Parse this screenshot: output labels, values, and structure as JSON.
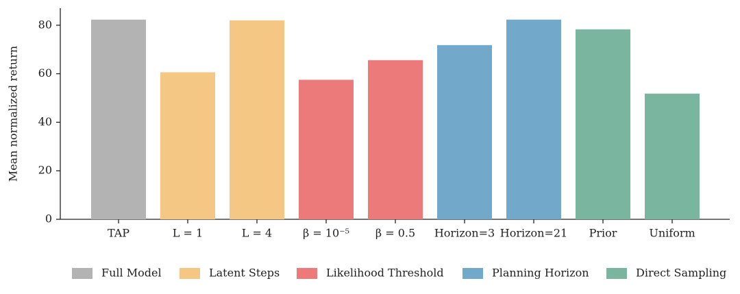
{
  "chart_data": {
    "type": "bar",
    "ylabel": "Mean normalized return",
    "categories": [
      "TAP",
      "L = 1",
      "L = 4",
      "β = 10⁻⁵",
      "β = 0.5",
      "Horizon=3",
      "Horizon=21",
      "Prior",
      "Uniform"
    ],
    "series": [
      {
        "name": "Full Model",
        "color": "#b3b3b3",
        "values": [
          82.3,
          null,
          null,
          null,
          null,
          null,
          null,
          null,
          null
        ]
      },
      {
        "name": "Latent Steps",
        "color": "#f4c784",
        "values": [
          null,
          60.6,
          82.0,
          null,
          null,
          null,
          null,
          null,
          null
        ]
      },
      {
        "name": "Likelihood Threshold",
        "color": "#ec7a7b",
        "values": [
          null,
          null,
          null,
          57.5,
          65.6,
          null,
          null,
          null,
          null
        ]
      },
      {
        "name": "Planning Horizon",
        "color": "#72a9ca",
        "values": [
          null,
          null,
          null,
          null,
          null,
          71.8,
          82.3,
          null,
          null
        ]
      },
      {
        "name": "Direct Sampling",
        "color": "#7ab5a0",
        "values": [
          null,
          null,
          null,
          null,
          null,
          null,
          null,
          78.3,
          51.8
        ]
      }
    ],
    "ylim": [
      0,
      87
    ],
    "yticks": [
      0,
      20,
      40,
      60,
      80
    ],
    "grid": false,
    "legend": "bottom"
  }
}
